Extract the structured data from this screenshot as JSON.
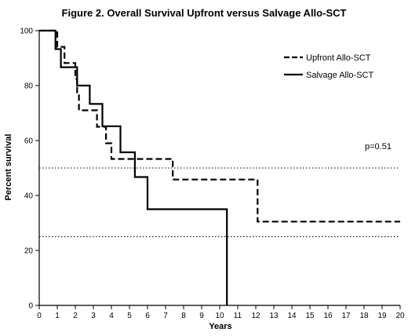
{
  "chart_data": {
    "type": "line",
    "step": true,
    "title": "Figure 2. Overall Survival Upfront versus Salvage Allo-SCT",
    "xlabel": "Years",
    "ylabel": "Percent survival",
    "xlim": [
      0,
      20
    ],
    "ylim": [
      0,
      100
    ],
    "x_ticks": [
      "0",
      "1",
      "2",
      "3",
      "4",
      "5",
      "6",
      "7",
      "8",
      "9",
      "10",
      "11",
      "12",
      "13",
      "14",
      "15",
      "16",
      "17",
      "18",
      "19",
      "20"
    ],
    "y_ticks": [
      "0",
      "20",
      "40",
      "60",
      "80",
      "100"
    ],
    "grid": false,
    "legend_position": "top-right",
    "reference_lines": [
      50,
      25
    ],
    "annotation": "p=0.51",
    "series": [
      {
        "name": "Upfront Allo-SCT",
        "line_style": "dashed",
        "color": "#000000",
        "points": [
          [
            0,
            100
          ],
          [
            1.0,
            100
          ],
          [
            1.0,
            94.1
          ],
          [
            1.4,
            94.1
          ],
          [
            1.4,
            88.2
          ],
          [
            2.0,
            88.2
          ],
          [
            2.0,
            82.4
          ],
          [
            2.1,
            82.4
          ],
          [
            2.1,
            76.5
          ],
          [
            2.2,
            76.5
          ],
          [
            2.2,
            71.0
          ],
          [
            3.2,
            71.0
          ],
          [
            3.2,
            65.0
          ],
          [
            3.7,
            65.0
          ],
          [
            3.7,
            59.0
          ],
          [
            4.0,
            59.0
          ],
          [
            4.0,
            53.3
          ],
          [
            7.4,
            53.3
          ],
          [
            7.4,
            45.8
          ],
          [
            12.1,
            45.8
          ],
          [
            12.1,
            30.5
          ],
          [
            20.0,
            30.5
          ]
        ]
      },
      {
        "name": "Salvage Allo-SCT",
        "line_style": "solid",
        "color": "#000000",
        "points": [
          [
            0,
            100
          ],
          [
            0.9,
            100
          ],
          [
            0.9,
            93.3
          ],
          [
            1.2,
            93.3
          ],
          [
            1.2,
            86.7
          ],
          [
            2.1,
            86.7
          ],
          [
            2.1,
            80.0
          ],
          [
            2.8,
            80.0
          ],
          [
            2.8,
            73.3
          ],
          [
            3.5,
            73.3
          ],
          [
            3.5,
            65.2
          ],
          [
            4.5,
            65.2
          ],
          [
            4.5,
            55.7
          ],
          [
            5.3,
            55.7
          ],
          [
            5.3,
            46.7
          ],
          [
            6.0,
            46.7
          ],
          [
            6.0,
            35.0
          ],
          [
            10.4,
            35.0
          ],
          [
            10.4,
            0
          ]
        ]
      }
    ]
  }
}
